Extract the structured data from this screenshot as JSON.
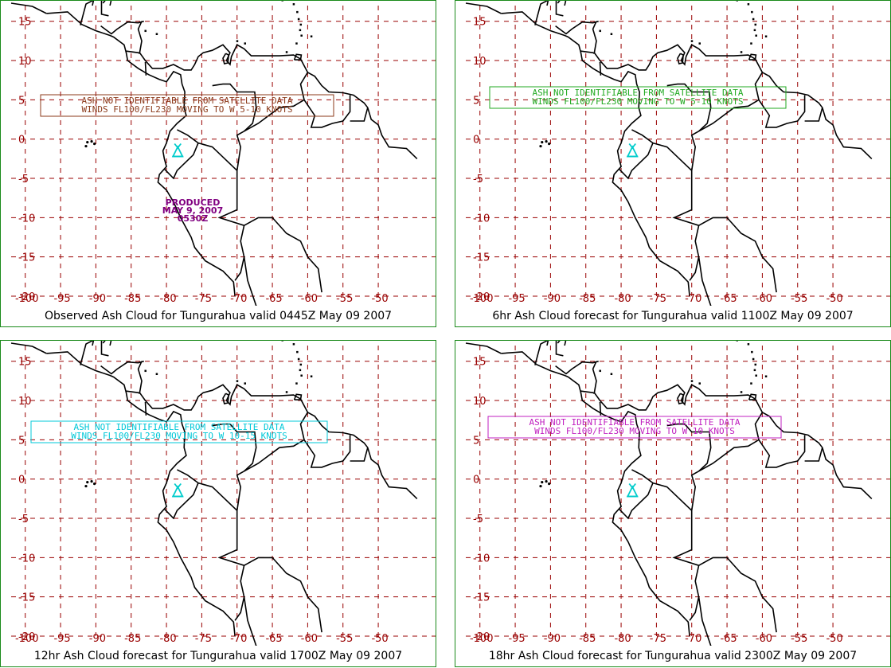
{
  "map": {
    "lon_min": -102,
    "lon_max": -42,
    "lat_min": -20,
    "lat_max": 17,
    "lon_ticks": [
      -100,
      -95,
      -90,
      -85,
      -80,
      -75,
      -70,
      -65,
      -60,
      -55,
      -50
    ],
    "lat_ticks": [
      15,
      10,
      5,
      0,
      -5,
      -10,
      -15,
      -20
    ],
    "lon_labels": [
      "-100",
      "-95",
      "-90",
      "-85",
      "-80",
      "-75",
      "-70",
      "-65",
      "-60",
      "-55",
      "-50"
    ],
    "lat_labels": [
      "15",
      "10",
      "5",
      "0",
      "-5",
      "-10",
      "-15",
      "-20"
    ],
    "volcano": {
      "lon": -78.4,
      "lat": -1.5
    },
    "colors": {
      "grid": "#990000",
      "coast": "#000000",
      "border": "#1a8a1a",
      "volcano": "#00cccc"
    }
  },
  "panels": [
    {
      "caption": "Observed Ash Cloud for Tungurahua valid 0445Z May 09 2007",
      "text_color": "#8b3a1a",
      "box_lines": [
        "ASH NOT IDENTIFIABLE FROM SATELLITE DATA",
        "WINDS FL100/FL230 MOVING TO W 5-10 KNOTS"
      ],
      "produced": [
        "PRODUCED",
        "MAY 9, 2007",
        "0530Z"
      ],
      "produced_color": "#800080"
    },
    {
      "caption": "6hr Ash Cloud forecast for Tungurahua valid 1100Z May 09 2007",
      "text_color": "#22aa22",
      "box_lines": [
        "ASH NOT IDENTIFIABLE FROM SATELLITE DATA",
        "WINDS FL100/FL230 MOVING TO W 5-10 KNOTS"
      ]
    },
    {
      "caption": "12hr Ash Cloud forecast for Tungurahua valid 1700Z May 09 2007",
      "text_color": "#00c8d8",
      "box_lines": [
        "ASH NOT IDENTIFIABLE FROM SATELLITE DATA",
        "WINDS FL100/FL230 MOVING TO W 10-15 KNOTS"
      ]
    },
    {
      "caption": "18hr Ash Cloud forecast for Tungurahua valid 2300Z May 09 2007",
      "text_color": "#c020c0",
      "box_lines": [
        "ASH NOT IDENTIFIABLE FROM SATELLITE DATA",
        "WINDS FL100/FL230 MOVING TO W 10 KNOTS"
      ]
    }
  ]
}
